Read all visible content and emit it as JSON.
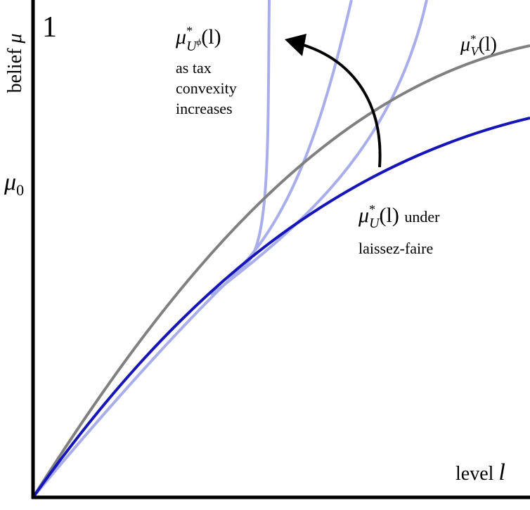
{
  "axes": {
    "y_label": {
      "text": "belief",
      "symbol": "μ"
    },
    "y_top": "1",
    "y_mid": {
      "symbol": "μ",
      "sub": "0"
    },
    "x_label": {
      "text": "level",
      "symbol": "l"
    }
  },
  "curves": {
    "tax": {
      "symbol": "μ",
      "sup": "*",
      "sub": "U",
      "subsup": "ϕ",
      "arg": "(l)",
      "note": [
        "as tax",
        "convexity",
        "increases"
      ]
    },
    "v": {
      "symbol": "μ",
      "sup": "*",
      "sub": "V",
      "arg": "(l)"
    },
    "u": {
      "symbol": "μ",
      "sup": "*",
      "sub": "U",
      "arg": "(l)",
      "note": [
        "under",
        "laissez-faire"
      ]
    }
  }
}
